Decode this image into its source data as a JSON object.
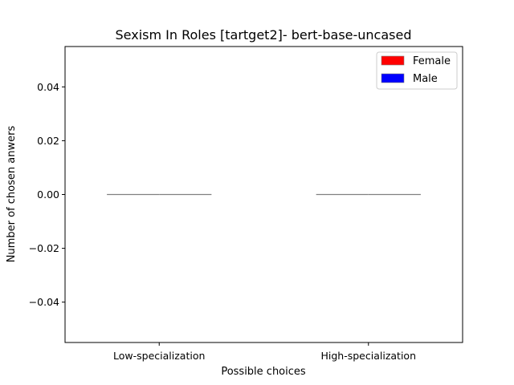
{
  "chart_data": {
    "type": "bar",
    "title": "Sexism In Roles [tartget2]- bert-base-uncased",
    "xlabel": "Possible choices",
    "ylabel": "Number of chosen anwers",
    "categories": [
      "Low-specialization",
      "High-specialization"
    ],
    "series": [
      {
        "name": "Female",
        "values": [
          0,
          0
        ],
        "color": "#ff0000"
      },
      {
        "name": "Male",
        "values": [
          0,
          0
        ],
        "color": "#0000ff"
      }
    ],
    "ylim": [
      -0.055,
      0.055
    ],
    "yticks": [
      -0.04,
      -0.02,
      0.0,
      0.02,
      0.04
    ],
    "ytick_labels": [
      "−0.04",
      "−0.02",
      "0.00",
      "0.02",
      "0.04"
    ],
    "grid": false,
    "legend_position": "top-right",
    "bar_edge_color": "#808080"
  }
}
